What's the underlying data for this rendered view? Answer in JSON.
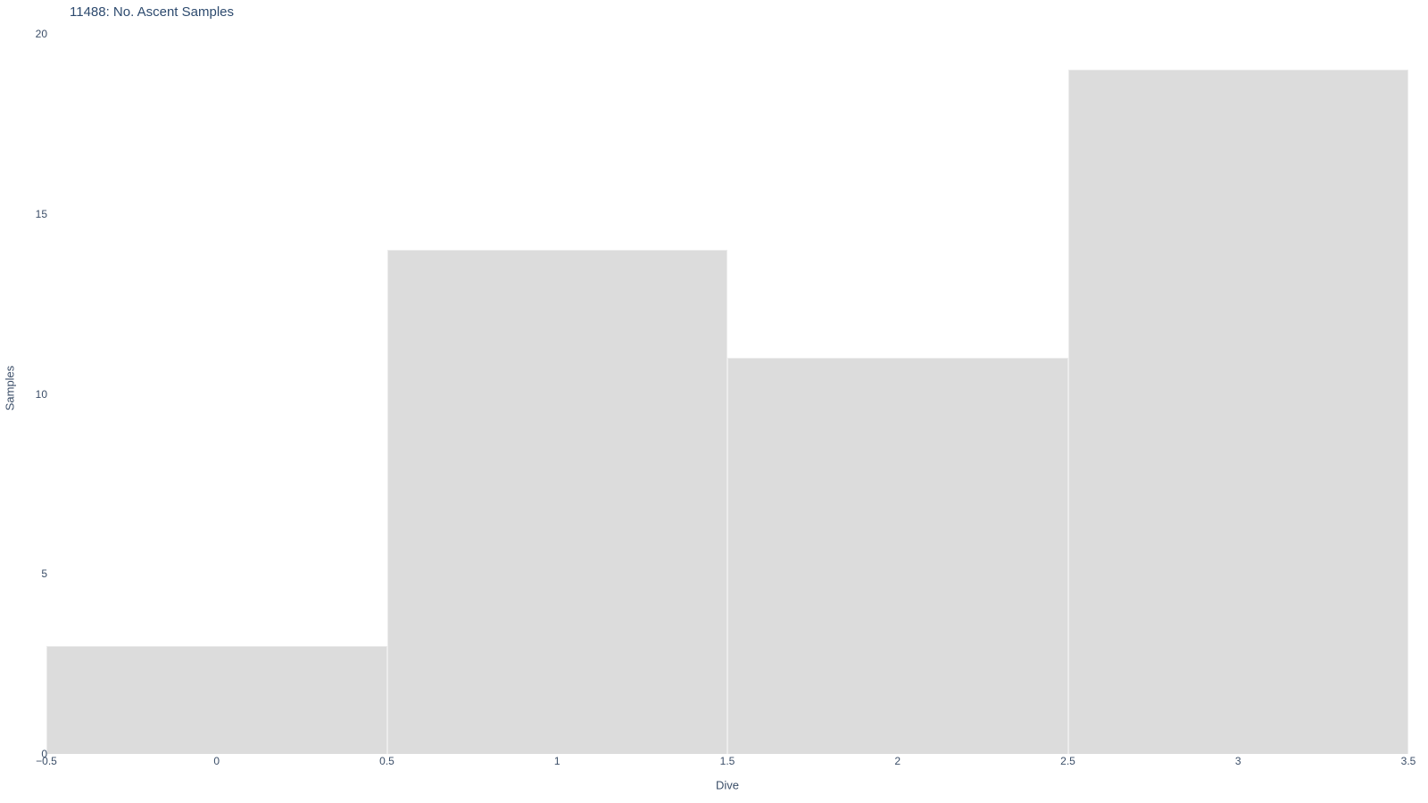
{
  "chart": {
    "title": "11488: No. Ascent Samples",
    "xlabel": "Dive",
    "ylabel": "Samples"
  },
  "chart_data": {
    "type": "bar",
    "title": "11488: No. Ascent Samples",
    "xlabel": "Dive",
    "ylabel": "Samples",
    "categories": [
      0,
      1,
      2,
      3
    ],
    "values": [
      3,
      14,
      11,
      19
    ],
    "bar_width": 1.0,
    "xlim": [
      -0.5,
      3.5
    ],
    "ylim": [
      0,
      20
    ],
    "x_ticks": [
      -0.5,
      0,
      0.5,
      1,
      1.5,
      2,
      2.5,
      3,
      3.5
    ],
    "x_tick_labels": [
      "−0.5",
      "0",
      "0.5",
      "1",
      "1.5",
      "2",
      "2.5",
      "3",
      "3.5"
    ],
    "y_ticks": [
      0,
      5,
      10,
      15,
      20
    ],
    "y_tick_labels": [
      "0",
      "5",
      "10",
      "15",
      "20"
    ],
    "grid": false,
    "legend": "none",
    "colors": {
      "bar_fill": "#dcdcdc",
      "bar_edge": "#ececec",
      "tick_text": "#3b4e68",
      "title_text": "#2d4a6e",
      "background": "#ffffff"
    }
  }
}
